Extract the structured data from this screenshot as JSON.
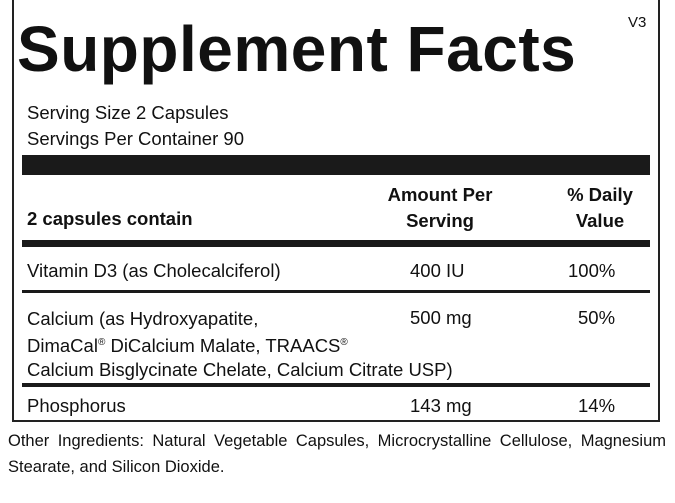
{
  "title": "Supplement Facts",
  "version": "V3",
  "serving_size": "Serving Size 2 Capsules",
  "servings_per_container": "Servings Per Container 90",
  "header": {
    "col1": "2 capsules contain",
    "col2_line1": "Amount Per",
    "col2_line2": "Serving",
    "col3_line1": "% Daily",
    "col3_line2": "Value"
  },
  "rows": [
    {
      "name": "Vitamin D3 (as Cholecalciferol)",
      "amount": "400 IU",
      "dv": "100%"
    },
    {
      "name_line1": "Calcium (as Hydroxyapatite,",
      "name_line2a": "DimaCal",
      "reg": "®",
      "name_line2b": " DiCalcium Malate, TRAACS",
      "name_line3": "Calcium Bisglycinate Chelate, Calcium Citrate USP)",
      "amount": "500 mg",
      "dv": "50%"
    },
    {
      "name": "Phosphorus",
      "amount": "143 mg",
      "dv": "14%"
    }
  ],
  "other_ingredients": "Other Ingredients: Natural Vegetable Capsules, Microcrystalline Cellulose, Magnesium Stearate, and Silicon Dioxide."
}
